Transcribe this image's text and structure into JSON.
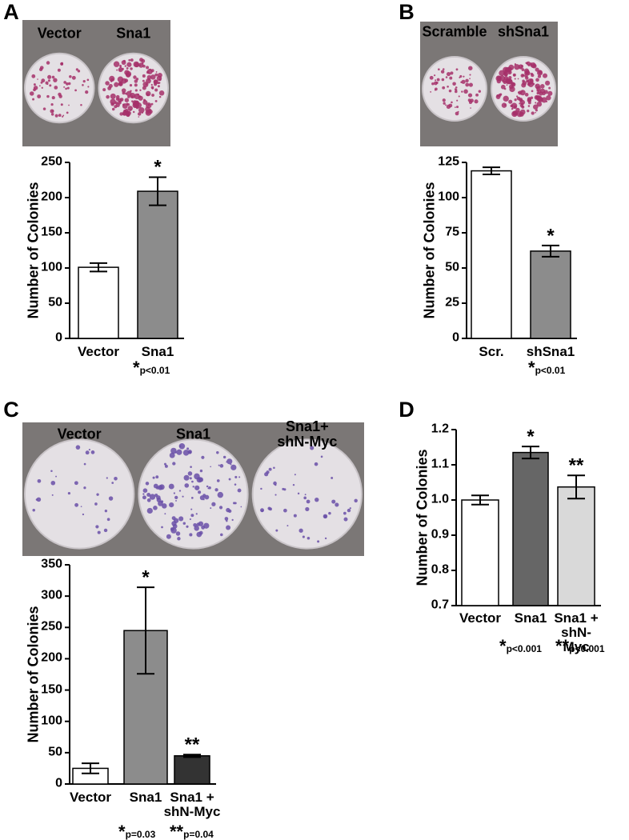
{
  "chart_data": [
    {
      "type": "bar",
      "panel": "A",
      "plate_labels": [
        "Vector",
        "Sna1"
      ],
      "y_label": "Number of Colonies",
      "categories": [
        "Vector",
        "Sna1"
      ],
      "values": [
        101,
        209
      ],
      "errors": [
        6,
        20
      ],
      "colors": [
        "#ffffff",
        "#8c8c8c"
      ],
      "annotations": [
        null,
        "*"
      ],
      "ylim": [
        0,
        250
      ],
      "yticks": [
        0,
        50,
        100,
        150,
        200,
        250
      ],
      "footnotes": [
        {
          "mark": "*",
          "text": "p<0.01"
        }
      ]
    },
    {
      "type": "bar",
      "panel": "B",
      "plate_labels": [
        "Scramble",
        "shSna1"
      ],
      "y_label": "Number of Colonies",
      "categories": [
        "Scr.",
        "shSna1"
      ],
      "values": [
        119,
        62
      ],
      "errors": [
        2.5,
        4
      ],
      "colors": [
        "#ffffff",
        "#8c8c8c"
      ],
      "annotations": [
        null,
        "*"
      ],
      "ylim": [
        0,
        125
      ],
      "yticks": [
        0,
        25,
        50,
        75,
        100,
        125
      ],
      "footnotes": [
        {
          "mark": "*",
          "text": "p<0.01"
        }
      ]
    },
    {
      "type": "bar",
      "panel": "C",
      "plate_labels": [
        "Vector",
        "Sna1",
        "Sna1+\nshN-Myc"
      ],
      "y_label": "Number of Colonies",
      "categories": [
        "Vector",
        "Sna1",
        "Sna1 +\nshN-Myc"
      ],
      "values": [
        25,
        245,
        45
      ],
      "errors": [
        8,
        69,
        2
      ],
      "colors": [
        "#ffffff",
        "#8c8c8c",
        "#333333"
      ],
      "annotations": [
        null,
        "*",
        "**"
      ],
      "ylim": [
        0,
        350
      ],
      "yticks": [
        0,
        50,
        100,
        150,
        200,
        250,
        300,
        350
      ],
      "footnotes": [
        {
          "mark": "*",
          "text": "p=0.03"
        },
        {
          "mark": "**",
          "text": "p=0.04"
        }
      ]
    },
    {
      "type": "bar",
      "panel": "D",
      "y_label": "Number of Colonies",
      "categories": [
        "Vector",
        "Sna1",
        "Sna1 +\nshN-Myc"
      ],
      "values": [
        1.0,
        1.135,
        1.037
      ],
      "errors": [
        0.013,
        0.017,
        0.033
      ],
      "colors": [
        "#ffffff",
        "#666666",
        "#d9d9d9"
      ],
      "annotations": [
        null,
        "*",
        "**"
      ],
      "ylim": [
        0.7,
        1.2
      ],
      "yticks": [
        0.7,
        0.8,
        0.9,
        {
          "value": 1,
          "label": "1.0"
        },
        1.1,
        1.2
      ],
      "footnotes": [
        {
          "mark": "*",
          "text": "p<0.001"
        },
        {
          "mark": "**",
          "text": "p<0.001"
        }
      ]
    }
  ]
}
